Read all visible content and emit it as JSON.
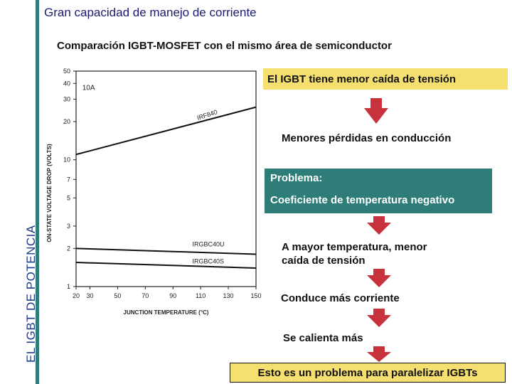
{
  "page": {
    "title": "Gran capacidad de manejo de corriente",
    "side_title": "EL IGBT DE POTENCIA",
    "subtitle": "Comparación IGBT-MOSFET con el mismo área de semiconductor"
  },
  "colors": {
    "accent_teal": "#2f7d78",
    "highlight_yellow": "#f4df70",
    "arrow_red": "#c8323c"
  },
  "flow": {
    "box1": "El IGBT tiene menor caída de tensión",
    "step1": "Menores pérdidas en conducción",
    "problem_title": "Problema:",
    "problem_text": "Coeficiente de temperatura negativo",
    "step2_line1": "A mayor temperatura, menor",
    "step2_line2": "caída de tensión",
    "step3": "Conduce más corriente",
    "step4": "Se calienta más",
    "final": "Esto es un problema para paralelizar IGBTs"
  },
  "chart_data": {
    "type": "line",
    "xlabel": "JUNCTION TEMPERATURE (°C)",
    "ylabel": "ON-STATE VOLTAGE DROP (VOLTS)",
    "x_ticks": [
      20,
      30,
      50,
      70,
      90,
      110,
      130,
      150
    ],
    "y_ticks": [
      1,
      2,
      3,
      5,
      7,
      10,
      20,
      30,
      40,
      50
    ],
    "y_scale": "log",
    "xlim": [
      20,
      150
    ],
    "ylim": [
      1,
      50
    ],
    "annotation": "10A",
    "series": [
      {
        "name": "IRF840",
        "x": [
          20,
          150
        ],
        "y": [
          11,
          26
        ]
      },
      {
        "name": "IRGBC40U",
        "x": [
          20,
          150
        ],
        "y": [
          2.0,
          1.8
        ]
      },
      {
        "name": "IRGBC40S",
        "x": [
          20,
          150
        ],
        "y": [
          1.55,
          1.4
        ]
      }
    ]
  }
}
